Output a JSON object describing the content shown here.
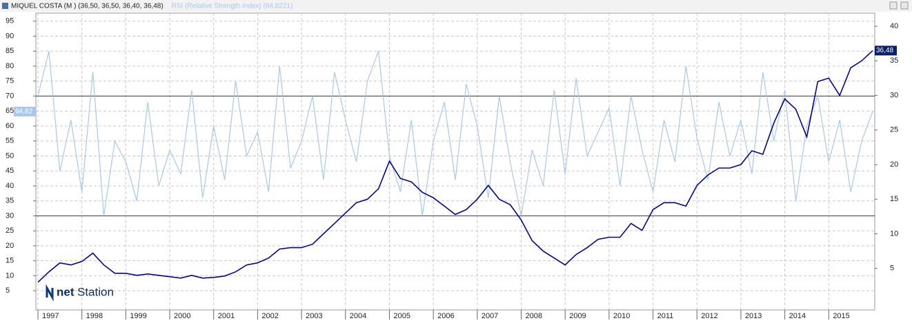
{
  "chart_data": {
    "type": "line",
    "title": "MIQUEL COSTA (M ) (36,50, 36,50, 36,40, 36,48)",
    "indicator_title": "RSI (Relative Strength Index) (64,8221)",
    "logo_prefix": "net",
    "logo_suffix": "Station",
    "categories": [
      "1997",
      null,
      null,
      null,
      "1998",
      null,
      null,
      null,
      "1999",
      null,
      null,
      null,
      "2000",
      null,
      null,
      null,
      "2001",
      null,
      null,
      null,
      "2002",
      null,
      null,
      null,
      "2003",
      null,
      null,
      null,
      "2004",
      null,
      null,
      null,
      "2005",
      null,
      null,
      null,
      "2006",
      null,
      null,
      null,
      "2007",
      null,
      null,
      null,
      "2008",
      null,
      null,
      null,
      "2009",
      null,
      null,
      null,
      "2010",
      null,
      null,
      null,
      "2011",
      null,
      null,
      null,
      "2012",
      null,
      null,
      null,
      "2013",
      null,
      null,
      null,
      "2014",
      null,
      null,
      null,
      "2015",
      null,
      null,
      null,
      null
    ],
    "series": [
      {
        "name": "MIQUEL COSTA",
        "color": "#0000a0",
        "axis": "y2",
        "values": [
          3.0,
          4.5,
          5.8,
          5.5,
          6.0,
          7.2,
          5.5,
          4.3,
          4.3,
          4.0,
          4.2,
          4.0,
          3.8,
          3.6,
          4.0,
          3.6,
          3.7,
          3.9,
          4.5,
          5.5,
          5.8,
          6.5,
          7.8,
          8.0,
          8.0,
          8.5,
          10.0,
          11.5,
          13.0,
          14.5,
          15.0,
          16.5,
          20.5,
          18.0,
          17.5,
          16.0,
          15.2,
          14.0,
          12.8,
          13.5,
          15.0,
          17.0,
          15.0,
          14.2,
          12.0,
          9.0,
          7.5,
          6.5,
          5.5,
          7.0,
          8.0,
          9.2,
          9.5,
          9.5,
          11.5,
          10.5,
          13.5,
          14.5,
          14.5,
          14.0,
          17.0,
          18.5,
          19.5,
          19.5,
          20.0,
          22.0,
          21.5,
          26.0,
          29.5,
          28.0,
          24.0,
          32.0,
          32.5,
          30.0,
          34.0,
          35.0,
          36.48
        ],
        "value_labels": [
          null,
          null,
          null,
          null,
          null,
          null,
          null,
          null,
          null,
          null,
          null,
          null,
          null,
          null,
          null,
          null,
          null,
          null,
          null,
          null,
          null,
          null,
          null,
          null,
          null,
          null,
          null,
          null,
          null,
          null,
          null,
          null,
          null,
          null,
          null,
          null,
          null,
          null,
          null,
          null,
          null,
          null,
          null,
          null,
          null,
          null,
          null,
          null,
          null,
          null,
          null,
          null,
          null,
          null,
          null,
          null,
          null,
          null,
          null,
          null,
          null,
          null,
          null,
          null,
          null,
          null,
          null,
          null,
          null,
          null,
          null,
          null,
          null,
          null,
          null,
          null,
          "36,48"
        ]
      },
      {
        "name": "RSI",
        "color": "#a7c8ec",
        "values": [
          70,
          85,
          45,
          62,
          38,
          78,
          30,
          55,
          48,
          35,
          68,
          40,
          52,
          44,
          72,
          36,
          60,
          42,
          75,
          50,
          58,
          38,
          80,
          46,
          55,
          70,
          42,
          78,
          62,
          48,
          75,
          85,
          50,
          38,
          62,
          30,
          55,
          68,
          42,
          74,
          60,
          36,
          70,
          48,
          30,
          52,
          40,
          72,
          44,
          76,
          50,
          58,
          66,
          40,
          70,
          52,
          38,
          62,
          48,
          80,
          56,
          42,
          68,
          50,
          62,
          44,
          78,
          55,
          72,
          35,
          60,
          70,
          48,
          62,
          38,
          55,
          64.82
        ],
        "value_labels": [
          null,
          null,
          null,
          null,
          null,
          null,
          null,
          null,
          null,
          null,
          null,
          null,
          null,
          null,
          null,
          null,
          null,
          null,
          null,
          null,
          null,
          null,
          null,
          null,
          null,
          null,
          null,
          null,
          null,
          null,
          null,
          null,
          null,
          null,
          null,
          null,
          null,
          null,
          null,
          null,
          null,
          null,
          null,
          null,
          null,
          null,
          null,
          null,
          null,
          null,
          null,
          null,
          null,
          null,
          null,
          null,
          null,
          null,
          null,
          null,
          null,
          null,
          null,
          null,
          null,
          null,
          null,
          null,
          null,
          null,
          null,
          null,
          null,
          null,
          null,
          null,
          "64,82"
        ]
      }
    ],
    "ylim": [
      -1.4,
      97.7
    ],
    "yticks": [
      5,
      10,
      15,
      20,
      25,
      30,
      35,
      40,
      45,
      50,
      55,
      60,
      65,
      70,
      75,
      80,
      85,
      90,
      95
    ],
    "y2lim": [
      -1,
      41.9
    ],
    "y2ticks": [
      5,
      10,
      15,
      20,
      25,
      30,
      35,
      40
    ],
    "hlines": [
      30,
      70
    ],
    "grid": true
  }
}
